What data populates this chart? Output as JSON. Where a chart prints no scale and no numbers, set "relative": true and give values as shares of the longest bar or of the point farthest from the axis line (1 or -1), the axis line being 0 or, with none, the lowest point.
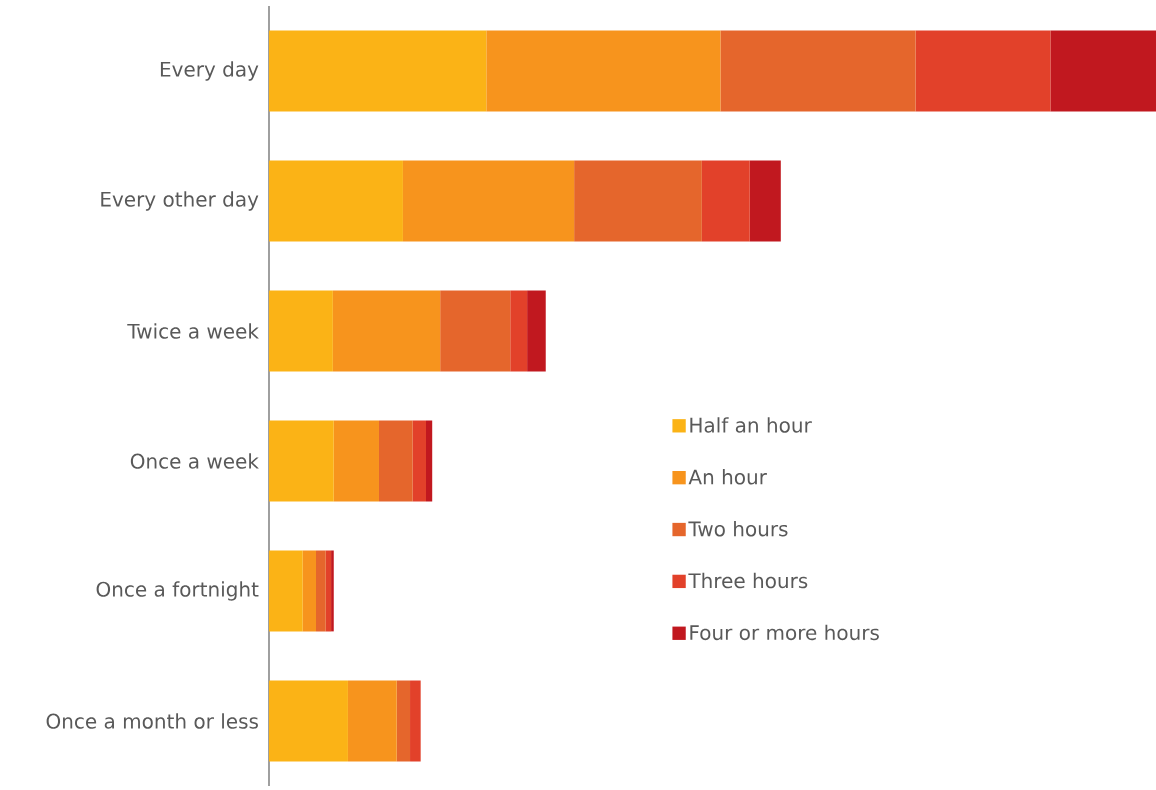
{
  "chart_data": {
    "type": "bar",
    "orientation": "horizontal",
    "stacked": true,
    "relative": true,
    "legend": "right",
    "categories": [
      "Every day",
      "Every other day",
      "Twice a week",
      "Once a week",
      "Once a fortnight",
      "Once a month or less"
    ],
    "series": [
      {
        "name": "Half an hour",
        "color": "#fbb316",
        "values": [
          0.245,
          0.151,
          0.072,
          0.073,
          0.038,
          0.089
        ]
      },
      {
        "name": "An hour",
        "color": "#f7941d",
        "values": [
          0.264,
          0.193,
          0.121,
          0.051,
          0.015,
          0.055
        ]
      },
      {
        "name": "Two hours",
        "color": "#e5662c",
        "values": [
          0.22,
          0.144,
          0.079,
          0.038,
          0.011,
          0.015
        ]
      },
      {
        "name": "Three hours",
        "color": "#e2412a",
        "values": [
          0.152,
          0.054,
          0.019,
          0.015,
          0.006,
          0.012
        ]
      },
      {
        "name": "Four or more hours",
        "color": "#c1181f",
        "values": [
          0.119,
          0.035,
          0.021,
          0.007,
          0.003,
          0.0
        ]
      }
    ]
  }
}
